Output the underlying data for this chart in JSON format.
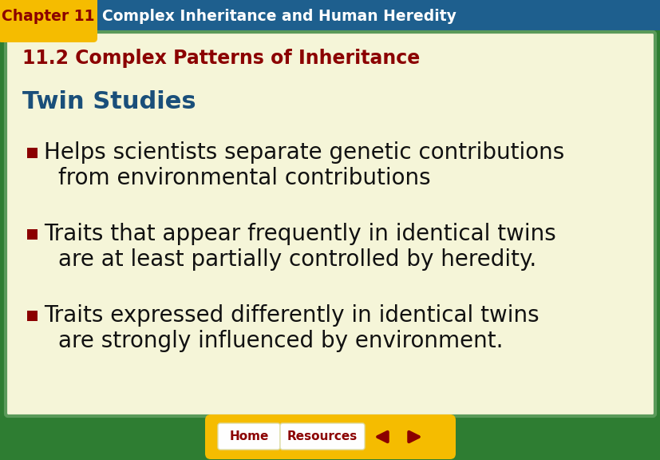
{
  "fig_width": 8.28,
  "fig_height": 5.76,
  "dpi": 100,
  "bg_outer": "#2e7d32",
  "bg_header_teal": "#1e5f8e",
  "header_tab_color": "#f5bc00",
  "header_tab_text": "Chapter 11",
  "header_tab_text_color": "#8b0000",
  "header_main_text": "Complex Inheritance and Human Heredity",
  "header_main_text_color": "#ffffff",
  "content_bg": "#f5f5d8",
  "content_border_outer": "#2e7d32",
  "content_border_inner": "#5a9a5a",
  "subtitle_text": "11.2 Complex Patterns of Inheritance",
  "subtitle_color": "#8b0000",
  "section_title": "Twin Studies",
  "section_title_color": "#1a4f7a",
  "bullet_color": "#8b0000",
  "bullet_text_color": "#111111",
  "bullet1_line1": "Helps scientists separate genetic contributions",
  "bullet1_line2": "from environmental contributions",
  "bullet2_line1": "Traits that appear frequently in identical twins",
  "bullet2_line2": "are at least partially controlled by heredity.",
  "bullet3_line1": "Traits expressed differently in identical twins",
  "bullet3_line2": "are strongly influenced by environment.",
  "nav_bar_color": "#f5bc00",
  "nav_btn_bg": "#fefefe",
  "nav_btn_text_color": "#8b0000",
  "nav_home": "Home",
  "nav_resources": "Resources"
}
